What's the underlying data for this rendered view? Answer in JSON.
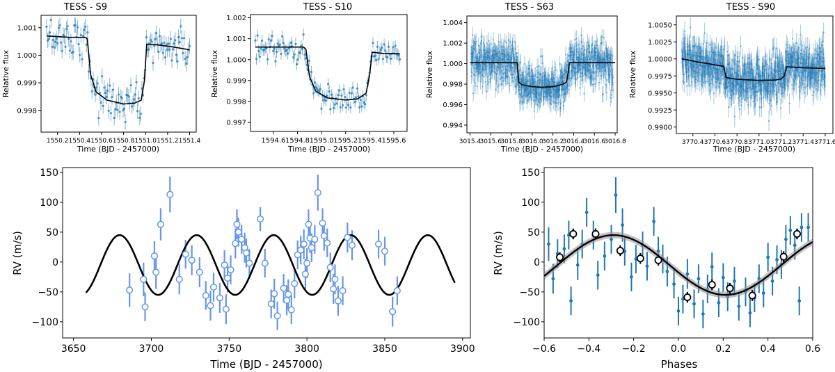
{
  "colors": {
    "lc_points": "#1f77b4",
    "rv_points": "#6495ed",
    "phase_points": "#1f77b4",
    "model": "#000000",
    "binned_face": "#ffffff",
    "binned_edge": "#000000"
  },
  "chart_data": [
    {
      "type": "scatter",
      "title": "TESS - S9",
      "xlabel": "Time (BJD - 2457000)",
      "ylabel": "Relative flux",
      "xlim": [
        1550.05,
        1551.46
      ],
      "ylim": [
        0.99721,
        1.00145
      ],
      "xticks": [
        1550.2,
        1550.4,
        1550.6,
        1550.8,
        1551.0,
        1551.2,
        1551.4
      ],
      "xticklabels": [
        "1550.2",
        "1550.4",
        "1550.6",
        "1550.8",
        "1551.0",
        "1551.2",
        "1551.4"
      ],
      "yticks": [
        0.998,
        0.999,
        1.0,
        1.001
      ],
      "yticklabels": [
        "0.998",
        "0.999",
        "1.000",
        "1.001"
      ],
      "error_bars": true,
      "model": {
        "name": "",
        "x": [
          1550.1,
          1550.3,
          1550.45,
          1550.47,
          1550.5,
          1550.55,
          1550.65,
          1550.8,
          1550.9,
          1550.96,
          1550.99,
          1551.01,
          1551.1,
          1551.25,
          1551.4
        ],
        "y": [
          1.0007,
          1.00065,
          1.00065,
          1.0006,
          0.9993,
          0.99867,
          0.99837,
          0.99823,
          0.99826,
          0.99837,
          0.9991,
          1.0004,
          1.00038,
          1.0003,
          1.0002
        ]
      },
      "transit": {
        "baseline": 1.00065,
        "depth": 0.0025,
        "t1": 1550.46,
        "t2": 1551.0
      }
    },
    {
      "type": "scatter",
      "title": "TESS - S10",
      "xlabel": "Time (BJD - 2457000)",
      "ylabel": "Relative flux",
      "xlim": [
        1594.41,
        1595.71
      ],
      "ylim": [
        0.99657,
        1.00215
      ],
      "xticks": [
        1594.6,
        1594.8,
        1595.0,
        1595.2,
        1595.4,
        1595.6
      ],
      "xticklabels": [
        "1594.6",
        "1594.8",
        "1595.0",
        "1595.2",
        "1595.4",
        "1595.6"
      ],
      "yticks": [
        0.997,
        0.998,
        0.999,
        1.0,
        1.001,
        1.002
      ],
      "yticklabels": [
        "0.997",
        "0.998",
        "0.999",
        "1.000",
        "1.001",
        "1.002"
      ],
      "error_bars": true,
      "model": {
        "name": "",
        "x": [
          1594.45,
          1594.7,
          1594.85,
          1594.87,
          1594.9,
          1594.95,
          1595.05,
          1595.2,
          1595.3,
          1595.37,
          1595.4,
          1595.42,
          1595.5,
          1595.65
        ],
        "y": [
          1.0006,
          1.0006,
          1.0006,
          1.0005,
          0.9992,
          0.9985,
          0.99817,
          0.99807,
          0.99812,
          0.9984,
          0.9993,
          1.00035,
          1.0003,
          1.00028
        ]
      },
      "transit": {
        "baseline": 1.0006,
        "depth": 0.0026,
        "t1": 1594.86,
        "t2": 1595.41
      }
    },
    {
      "type": "scatter",
      "title": "TESS - S63",
      "xlabel": "Time (BJD - 2457000)",
      "ylabel": "Relative flux",
      "xlim": [
        3015.37,
        3016.82
      ],
      "ylim": [
        0.99325,
        1.00465
      ],
      "xticks": [
        3015.4,
        3015.6,
        3015.8,
        3016.0,
        3016.2,
        3016.4,
        3016.6,
        3016.8
      ],
      "xticklabels": [
        "3015.4",
        "3015.6",
        "3015.8",
        "3016.0",
        "3016.2",
        "3016.4",
        "3016.6",
        "3016.8"
      ],
      "yticks": [
        0.994,
        0.996,
        0.998,
        1.0,
        1.002,
        1.004
      ],
      "yticklabels": [
        "0.994",
        "0.996",
        "0.998",
        "1.000",
        "1.002",
        "1.004"
      ],
      "error_bars": true,
      "model": {
        "name": "",
        "x": [
          3015.4,
          3015.8,
          3015.855,
          3015.87,
          3015.9,
          3016.0,
          3016.1,
          3016.2,
          3016.3,
          3016.33,
          3016.35,
          3016.36,
          3016.8
        ],
        "y": [
          1.0001,
          1.0001,
          1.0001,
          0.9982,
          0.99795,
          0.99775,
          0.9977,
          0.99775,
          0.998,
          0.9982,
          0.9993,
          1.0001,
          1.0001
        ]
      },
      "transit": {
        "baseline": 1.0001,
        "depth": 0.0024,
        "t1": 3015.86,
        "t2": 3016.36
      }
    },
    {
      "type": "scatter",
      "title": "TESS - S90",
      "xlabel": "Time (BJD - 2457000)",
      "ylabel": "Relative flux",
      "xlim": [
        3770.25,
        3771.67
      ],
      "ylim": [
        0.98905,
        1.0063
      ],
      "xticks": [
        3770.4,
        3770.6,
        3770.8,
        3771.0,
        3771.2,
        3771.4,
        3771.6
      ],
      "xticklabels": [
        "3770.4",
        "3770.6",
        "3770.8",
        "3771.0",
        "3771.2",
        "3771.4",
        "3771.6"
      ],
      "yticks": [
        0.99,
        0.9925,
        0.995,
        0.9975,
        1.0,
        1.0025,
        1.005
      ],
      "yticklabels": [
        "0.9900",
        "0.9925",
        "0.9950",
        "0.9975",
        "1.0000",
        "1.0025",
        "1.0050"
      ],
      "error_bars": true,
      "model": {
        "name": "",
        "x": [
          3770.3,
          3770.5,
          3770.68,
          3770.7,
          3770.75,
          3770.85,
          3771.0,
          3771.15,
          3771.2,
          3771.23,
          3771.25,
          3771.4,
          3771.6
        ],
        "y": [
          1.0,
          0.9994,
          0.9989,
          0.9973,
          0.9971,
          0.99695,
          0.99685,
          0.9969,
          0.99705,
          0.9975,
          0.99885,
          0.9987,
          0.9986
        ]
      },
      "transit": {
        "baseline": 0.9994,
        "depth": 0.0024,
        "t1": 3770.7,
        "t2": 3771.23
      }
    },
    {
      "type": "scatter",
      "title": "",
      "xlabel": "Time (BJD - 2457000)",
      "ylabel": "RV (m/s)",
      "xlim": [
        3643,
        3905
      ],
      "ylim": [
        -127,
        158
      ],
      "xticks": [
        3650,
        3700,
        3750,
        3800,
        3850,
        3900
      ],
      "xticklabels": [
        "3650",
        "3700",
        "3750",
        "3800",
        "3850",
        "3900"
      ],
      "yticks": [
        -100,
        -50,
        0,
        50,
        100,
        150
      ],
      "yticklabels": [
        "−100",
        "−50",
        "0",
        "50",
        "100",
        "150"
      ],
      "marker": "open-circle",
      "model": {
        "name": "",
        "amplitude": 50,
        "offset": -5,
        "period": 49.5,
        "t0": 3657,
        "phase0": -1.3,
        "x_range": [
          3658,
          3895
        ]
      },
      "points": [
        {
          "x": 3686,
          "y": -47,
          "err": 28
        },
        {
          "x": 3695,
          "y": -29,
          "err": 28
        },
        {
          "x": 3696,
          "y": -75,
          "err": 24
        },
        {
          "x": 3702,
          "y": 10,
          "err": 25
        },
        {
          "x": 3703,
          "y": -17,
          "err": 28
        },
        {
          "x": 3706,
          "y": 63,
          "err": 27
        },
        {
          "x": 3712,
          "y": 113,
          "err": 30
        },
        {
          "x": 3718,
          "y": -29,
          "err": 25
        },
        {
          "x": 3722,
          "y": 13,
          "err": 24
        },
        {
          "x": 3726,
          "y": 3,
          "err": 25
        },
        {
          "x": 3731,
          "y": -17,
          "err": 25
        },
        {
          "x": 3735,
          "y": -56,
          "err": 24
        },
        {
          "x": 3738,
          "y": -73,
          "err": 25
        },
        {
          "x": 3740,
          "y": -42,
          "err": 24
        },
        {
          "x": 3744,
          "y": -60,
          "err": 25
        },
        {
          "x": 3747,
          "y": -5,
          "err": 25
        },
        {
          "x": 3748,
          "y": -79,
          "err": 25
        },
        {
          "x": 3749,
          "y": -27,
          "err": 24
        },
        {
          "x": 3751,
          "y": -13,
          "err": 24
        },
        {
          "x": 3754,
          "y": 31,
          "err": 25
        },
        {
          "x": 3755,
          "y": 63,
          "err": 25
        },
        {
          "x": 3756,
          "y": 50,
          "err": 24
        },
        {
          "x": 3758,
          "y": 38,
          "err": 24
        },
        {
          "x": 3760,
          "y": 24,
          "err": 25
        },
        {
          "x": 3761,
          "y": 15,
          "err": 24
        },
        {
          "x": 3763,
          "y": -2,
          "err": 24
        },
        {
          "x": 3770,
          "y": 72,
          "err": 20
        },
        {
          "x": 3773,
          "y": -2,
          "err": 24
        },
        {
          "x": 3777,
          "y": -70,
          "err": 24
        },
        {
          "x": 3779,
          "y": -53,
          "err": 25
        },
        {
          "x": 3781,
          "y": -90,
          "err": 24
        },
        {
          "x": 3785,
          "y": -44,
          "err": 24
        },
        {
          "x": 3787,
          "y": -64,
          "err": 25
        },
        {
          "x": 3788,
          "y": -54,
          "err": 25
        },
        {
          "x": 3790,
          "y": -80,
          "err": 24
        },
        {
          "x": 3792,
          "y": -36,
          "err": 25
        },
        {
          "x": 3794,
          "y": 12,
          "err": 24
        },
        {
          "x": 3796,
          "y": 20,
          "err": 24
        },
        {
          "x": 3798,
          "y": 30,
          "err": 25
        },
        {
          "x": 3799,
          "y": -20,
          "err": 25
        },
        {
          "x": 3800,
          "y": -2,
          "err": 25
        },
        {
          "x": 3801,
          "y": 63,
          "err": 25
        },
        {
          "x": 3802,
          "y": 40,
          "err": 25
        },
        {
          "x": 3803,
          "y": 24,
          "err": 24
        },
        {
          "x": 3805,
          "y": 38,
          "err": 24
        },
        {
          "x": 3807,
          "y": 116,
          "err": 30
        },
        {
          "x": 3810,
          "y": 65,
          "err": 25
        },
        {
          "x": 3811,
          "y": 44,
          "err": 25
        },
        {
          "x": 3813,
          "y": 32,
          "err": 24
        },
        {
          "x": 3815,
          "y": -9,
          "err": 25
        },
        {
          "x": 3817,
          "y": -45,
          "err": 25
        },
        {
          "x": 3818,
          "y": -29,
          "err": 25
        },
        {
          "x": 3820,
          "y": -65,
          "err": 25
        },
        {
          "x": 3823,
          "y": -48,
          "err": 24
        },
        {
          "x": 3826,
          "y": 41,
          "err": 25
        },
        {
          "x": 3829,
          "y": 28,
          "err": 25
        },
        {
          "x": 3846,
          "y": 30,
          "err": 24
        },
        {
          "x": 3850,
          "y": 18,
          "err": 24
        },
        {
          "x": 3855,
          "y": -83,
          "err": 25
        },
        {
          "x": 3858,
          "y": -48,
          "err": 24
        }
      ]
    },
    {
      "type": "scatter",
      "title": "",
      "xlabel": "Phases",
      "ylabel": "RV (m/s)",
      "xlim": [
        -0.6,
        0.6
      ],
      "ylim": [
        -127,
        158
      ],
      "xticks": [
        -0.6,
        -0.4,
        -0.2,
        0.0,
        0.2,
        0.4,
        0.6
      ],
      "xticklabels": [
        "−0.6",
        "−0.4",
        "−0.2",
        "0.0",
        "0.2",
        "0.4",
        "0.6"
      ],
      "yticks": [
        -100,
        -50,
        0,
        50,
        100,
        150
      ],
      "yticklabels": [
        "−100",
        "−50",
        "0",
        "50",
        "100",
        "150"
      ],
      "model": {
        "name": "",
        "amplitude": 50,
        "offset": -5,
        "x_range": [
          -0.6,
          0.6
        ],
        "phase_of_max": -0.29
      },
      "points": [
        {
          "x": -0.58,
          "y": 30,
          "err": 28
        },
        {
          "x": -0.56,
          "y": -28,
          "err": 25
        },
        {
          "x": -0.54,
          "y": 14,
          "err": 24
        },
        {
          "x": -0.51,
          "y": 22,
          "err": 24
        },
        {
          "x": -0.49,
          "y": 45,
          "err": 24
        },
        {
          "x": -0.48,
          "y": -65,
          "err": 24
        },
        {
          "x": -0.45,
          "y": -5,
          "err": 25
        },
        {
          "x": -0.43,
          "y": 30,
          "err": 24
        },
        {
          "x": -0.41,
          "y": 83,
          "err": 24
        },
        {
          "x": -0.38,
          "y": 45,
          "err": 24
        },
        {
          "x": -0.36,
          "y": -22,
          "err": 24
        },
        {
          "x": -0.33,
          "y": 10,
          "err": 24
        },
        {
          "x": -0.3,
          "y": 38,
          "err": 24
        },
        {
          "x": -0.28,
          "y": 112,
          "err": 30
        },
        {
          "x": -0.25,
          "y": 62,
          "err": 28
        },
        {
          "x": -0.24,
          "y": 18,
          "err": 24
        },
        {
          "x": -0.21,
          "y": -25,
          "err": 24
        },
        {
          "x": -0.19,
          "y": 5,
          "err": 24
        },
        {
          "x": -0.16,
          "y": 27,
          "err": 24
        },
        {
          "x": -0.14,
          "y": -7,
          "err": 24
        },
        {
          "x": -0.11,
          "y": 68,
          "err": 24
        },
        {
          "x": -0.09,
          "y": 18,
          "err": 24
        },
        {
          "x": -0.07,
          "y": 5,
          "err": 24
        },
        {
          "x": -0.05,
          "y": -16,
          "err": 25
        },
        {
          "x": -0.02,
          "y": -37,
          "err": 24
        },
        {
          "x": 0.0,
          "y": -82,
          "err": 24
        },
        {
          "x": 0.02,
          "y": -62,
          "err": 24
        },
        {
          "x": 0.04,
          "y": -20,
          "err": 25
        },
        {
          "x": 0.07,
          "y": -70,
          "err": 24
        },
        {
          "x": 0.09,
          "y": -28,
          "err": 24
        },
        {
          "x": 0.11,
          "y": -87,
          "err": 24
        },
        {
          "x": 0.13,
          "y": -45,
          "err": 24
        },
        {
          "x": 0.15,
          "y": -8,
          "err": 24
        },
        {
          "x": 0.18,
          "y": -68,
          "err": 24
        },
        {
          "x": 0.2,
          "y": -26,
          "err": 24
        },
        {
          "x": 0.22,
          "y": -58,
          "err": 24
        },
        {
          "x": 0.25,
          "y": -32,
          "err": 24
        },
        {
          "x": 0.27,
          "y": -74,
          "err": 24
        },
        {
          "x": 0.3,
          "y": -50,
          "err": 24
        },
        {
          "x": 0.32,
          "y": -85,
          "err": 24
        },
        {
          "x": 0.34,
          "y": -60,
          "err": 24
        },
        {
          "x": 0.36,
          "y": -28,
          "err": 24
        },
        {
          "x": 0.38,
          "y": -52,
          "err": 24
        },
        {
          "x": 0.4,
          "y": 8,
          "err": 24
        },
        {
          "x": 0.42,
          "y": -32,
          "err": 24
        },
        {
          "x": 0.44,
          "y": 4,
          "err": 24
        },
        {
          "x": 0.46,
          "y": -4,
          "err": 24
        },
        {
          "x": 0.48,
          "y": 38,
          "err": 24
        },
        {
          "x": 0.5,
          "y": 53,
          "err": 24
        },
        {
          "x": 0.52,
          "y": 28,
          "err": 24
        },
        {
          "x": 0.54,
          "y": -65,
          "err": 24
        },
        {
          "x": 0.55,
          "y": 58,
          "err": 24
        },
        {
          "x": 0.58,
          "y": 58,
          "err": 24
        }
      ],
      "binned": [
        {
          "x": -0.53,
          "y": 8,
          "err": 8
        },
        {
          "x": -0.47,
          "y": 47,
          "err": 9
        },
        {
          "x": -0.37,
          "y": 47,
          "err": 9
        },
        {
          "x": -0.26,
          "y": 19,
          "err": 9
        },
        {
          "x": -0.17,
          "y": 6,
          "err": 9
        },
        {
          "x": -0.09,
          "y": 3,
          "err": 9
        },
        {
          "x": 0.04,
          "y": -59,
          "err": 9
        },
        {
          "x": 0.15,
          "y": -38,
          "err": 9
        },
        {
          "x": 0.23,
          "y": -44,
          "err": 9
        },
        {
          "x": 0.33,
          "y": -56,
          "err": 9
        },
        {
          "x": 0.47,
          "y": 9,
          "err": 9
        },
        {
          "x": 0.53,
          "y": 47,
          "err": 9
        }
      ]
    }
  ]
}
